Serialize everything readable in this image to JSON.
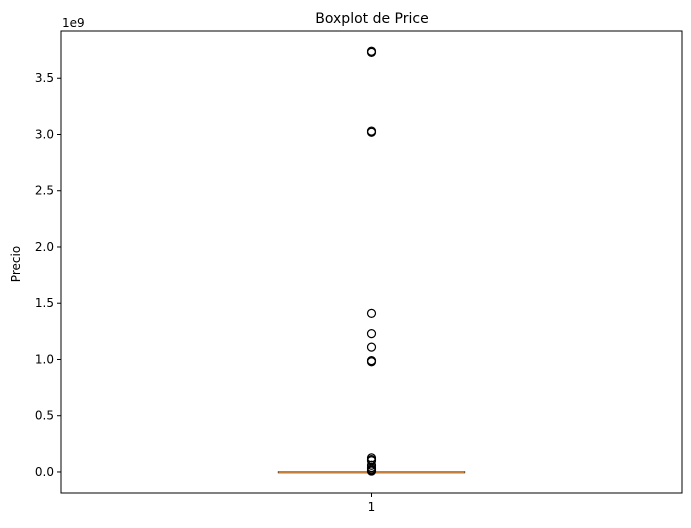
{
  "chart_data": {
    "type": "boxplot",
    "title": "Boxplot de Price",
    "xlabel": "",
    "ylabel": "Precio",
    "y_offset_label": "1e9",
    "y_scale": 1000000000,
    "ylim": [
      -0.187,
      3.92
    ],
    "y_ticks": [
      0.0,
      0.5,
      1.0,
      1.5,
      2.0,
      2.5,
      3.0,
      3.5
    ],
    "y_tick_labels": [
      "0.0",
      "0.5",
      "1.0",
      "1.5",
      "2.0",
      "2.5",
      "3.0",
      "3.5"
    ],
    "categories": [
      "1"
    ],
    "xlim": [
      0.5,
      1.5
    ],
    "box": {
      "position": 1,
      "median": 0.0,
      "q1": 0.0,
      "q3": 0.002,
      "whisker_low": 0.0,
      "whisker_high": 0.003,
      "outliers": [
        3.74,
        3.73,
        3.03,
        3.02,
        1.41,
        1.23,
        1.11,
        0.99,
        0.98,
        0.125,
        0.11,
        0.1,
        0.06,
        0.04,
        0.025,
        0.015,
        0.008
      ],
      "median_color": "#c47f3b",
      "box_color": "#000000",
      "outlier_color": "#000000"
    },
    "grid": false
  }
}
